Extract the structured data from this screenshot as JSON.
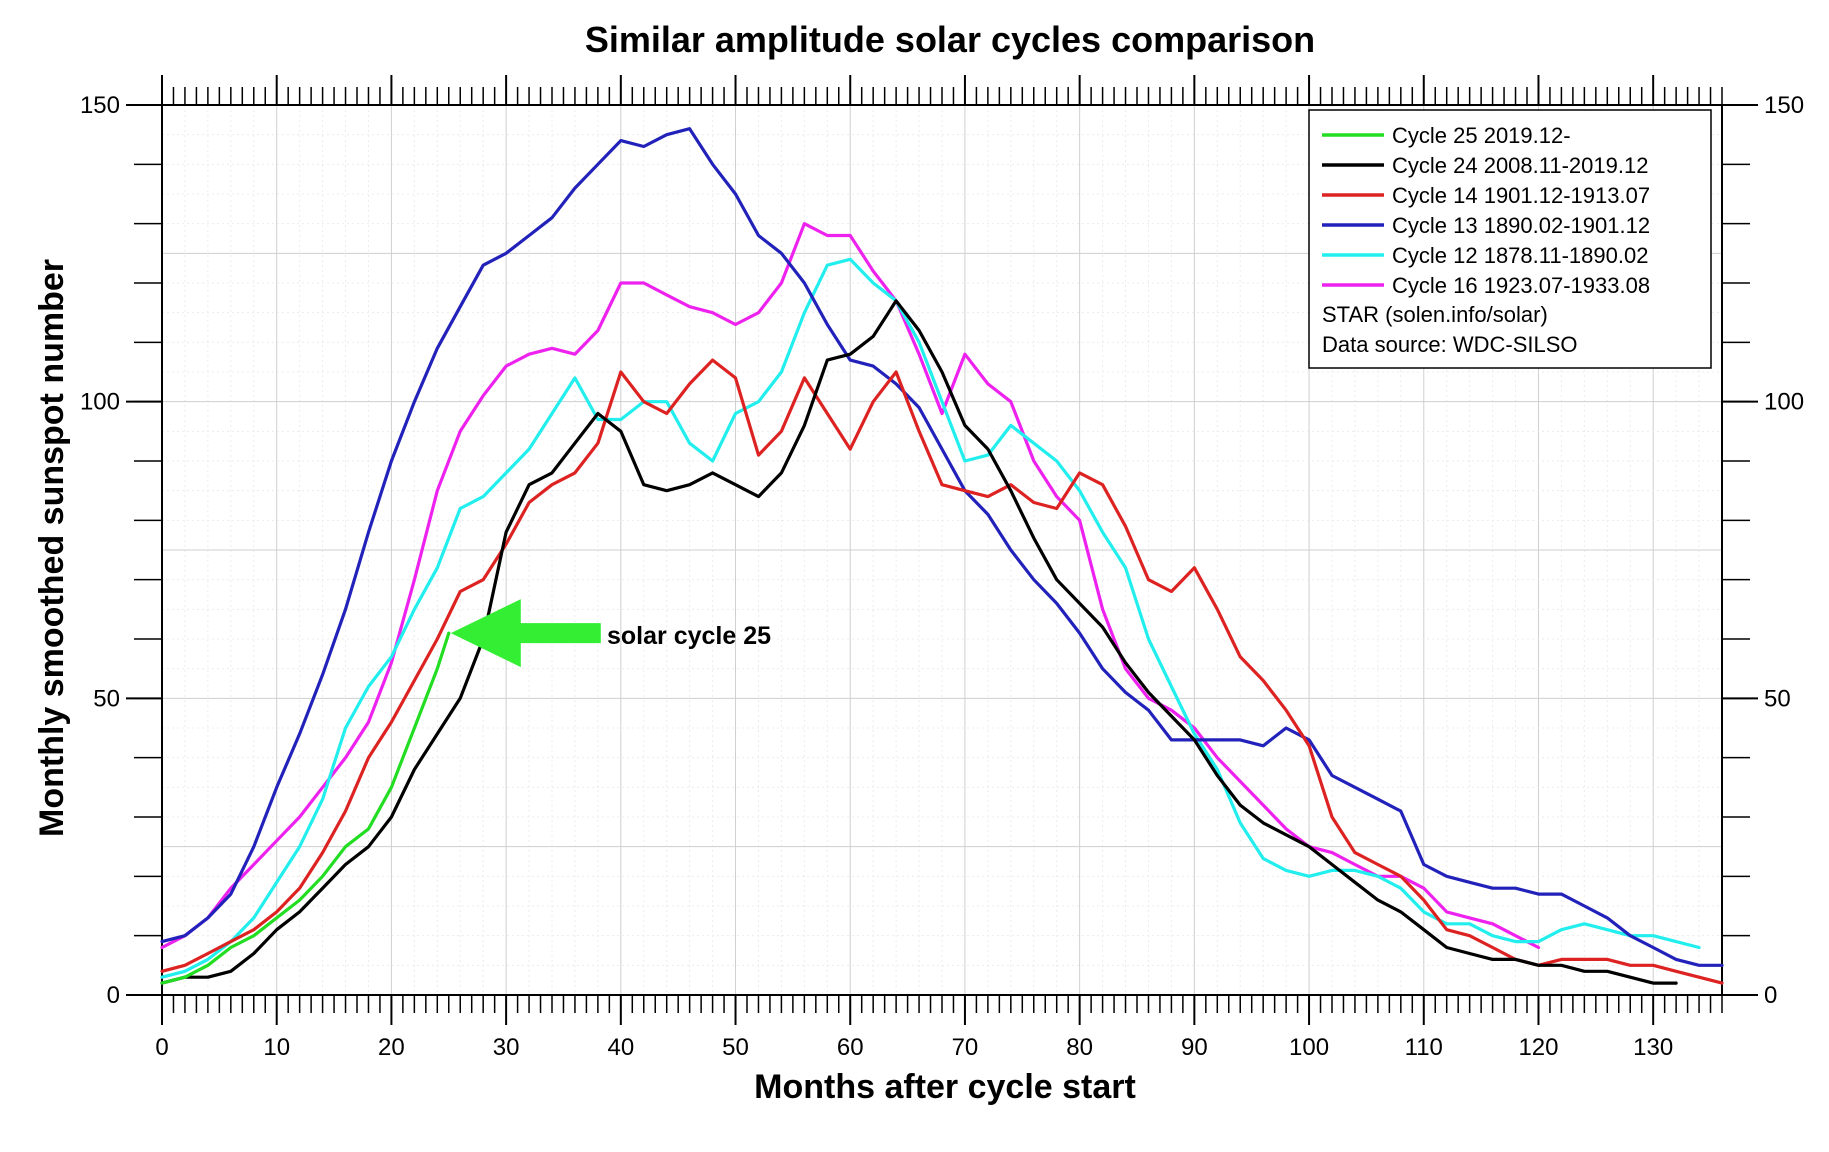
{
  "chart_data": {
    "type": "line",
    "title": "Similar amplitude solar cycles comparison",
    "xlabel": "Months after cycle start",
    "ylabel": "Monthly smoothed sunspot number",
    "xlim": [
      0,
      136
    ],
    "ylim": [
      0,
      150
    ],
    "x_ticks": [
      0,
      10,
      20,
      30,
      40,
      50,
      60,
      70,
      80,
      90,
      100,
      110,
      120,
      130
    ],
    "y_ticks": [
      0,
      50,
      100,
      150
    ],
    "grid": true,
    "right_axis": true,
    "legend_position": "top-right",
    "legend_notes": [
      "STAR (solen.info/solar)",
      "Data source: WDC-SILSO"
    ],
    "annotation": {
      "text": "solar cycle 25",
      "arrow_color": "#33ee33",
      "points_to": {
        "x": 25,
        "y": 61
      }
    },
    "series": [
      {
        "name": "Cycle 25 2019.12-",
        "color": "#22dd22",
        "x": [
          0,
          2,
          4,
          6,
          8,
          10,
          12,
          14,
          16,
          18,
          20,
          22,
          24,
          25
        ],
        "y": [
          2,
          3,
          5,
          8,
          10,
          13,
          16,
          20,
          25,
          28,
          35,
          45,
          55,
          61
        ]
      },
      {
        "name": "Cycle 24 2008.11-2019.12",
        "color": "#000000",
        "x": [
          0,
          2,
          4,
          6,
          8,
          10,
          12,
          14,
          16,
          18,
          20,
          22,
          24,
          26,
          28,
          30,
          32,
          34,
          36,
          38,
          40,
          42,
          44,
          46,
          48,
          50,
          52,
          54,
          56,
          58,
          60,
          62,
          64,
          66,
          68,
          70,
          72,
          74,
          76,
          78,
          80,
          82,
          84,
          86,
          88,
          90,
          92,
          94,
          96,
          98,
          100,
          102,
          104,
          106,
          108,
          110,
          112,
          114,
          116,
          118,
          120,
          122,
          124,
          126,
          128,
          130,
          132
        ],
        "y": [
          2,
          3,
          3,
          4,
          7,
          11,
          14,
          18,
          22,
          25,
          30,
          38,
          44,
          50,
          60,
          78,
          86,
          88,
          93,
          98,
          95,
          86,
          85,
          86,
          88,
          86,
          84,
          88,
          96,
          107,
          108,
          111,
          117,
          112,
          105,
          96,
          92,
          85,
          77,
          70,
          66,
          62,
          56,
          51,
          47,
          43,
          37,
          32,
          29,
          27,
          25,
          22,
          19,
          16,
          14,
          11,
          8,
          7,
          6,
          6,
          5,
          5,
          4,
          4,
          3,
          2,
          2
        ]
      },
      {
        "name": "Cycle 14 1901.12-1913.07",
        "color": "#dd2222",
        "x": [
          0,
          2,
          4,
          6,
          8,
          10,
          12,
          14,
          16,
          18,
          20,
          22,
          24,
          26,
          28,
          30,
          32,
          34,
          36,
          38,
          40,
          42,
          44,
          46,
          48,
          50,
          52,
          54,
          56,
          58,
          60,
          62,
          64,
          66,
          68,
          70,
          72,
          74,
          76,
          78,
          80,
          82,
          84,
          86,
          88,
          90,
          92,
          94,
          96,
          98,
          100,
          102,
          104,
          106,
          108,
          110,
          112,
          114,
          116,
          118,
          120,
          122,
          124,
          126,
          128,
          130,
          132,
          134,
          136
        ],
        "y": [
          4,
          5,
          7,
          9,
          11,
          14,
          18,
          24,
          31,
          40,
          46,
          53,
          60,
          68,
          70,
          76,
          83,
          86,
          88,
          93,
          105,
          100,
          98,
          103,
          107,
          104,
          91,
          95,
          104,
          98,
          92,
          100,
          105,
          95,
          86,
          85,
          84,
          86,
          83,
          82,
          88,
          86,
          79,
          70,
          68,
          72,
          65,
          57,
          53,
          48,
          42,
          30,
          24,
          22,
          20,
          16,
          11,
          10,
          8,
          6,
          5,
          6,
          6,
          6,
          5,
          5,
          4,
          3,
          2
        ]
      },
      {
        "name": "Cycle 13 1890.02-1901.12",
        "color": "#2222bb",
        "x": [
          0,
          2,
          4,
          6,
          8,
          10,
          12,
          14,
          16,
          18,
          20,
          22,
          24,
          26,
          28,
          30,
          32,
          34,
          36,
          38,
          40,
          42,
          44,
          46,
          48,
          50,
          52,
          54,
          56,
          58,
          60,
          62,
          64,
          66,
          68,
          70,
          72,
          74,
          76,
          78,
          80,
          82,
          84,
          86,
          88,
          90,
          92,
          94,
          96,
          98,
          100,
          102,
          104,
          106,
          108,
          110,
          112,
          114,
          116,
          118,
          120,
          122,
          124,
          126,
          128,
          130,
          132,
          134,
          136
        ],
        "y": [
          9,
          10,
          13,
          17,
          25,
          35,
          44,
          54,
          65,
          78,
          90,
          100,
          109,
          116,
          123,
          125,
          128,
          131,
          136,
          140,
          144,
          143,
          145,
          146,
          140,
          135,
          128,
          125,
          120,
          113,
          107,
          106,
          103,
          99,
          92,
          85,
          81,
          75,
          70,
          66,
          61,
          55,
          51,
          48,
          43,
          43,
          43,
          43,
          42,
          45,
          43,
          37,
          35,
          33,
          31,
          22,
          20,
          19,
          18,
          18,
          17,
          17,
          15,
          13,
          10,
          8,
          6,
          5,
          5
        ]
      },
      {
        "name": "Cycle 12 1878.11-1890.02",
        "color": "#22eeee",
        "x": [
          0,
          2,
          4,
          6,
          8,
          10,
          12,
          14,
          16,
          18,
          20,
          22,
          24,
          26,
          28,
          30,
          32,
          34,
          36,
          38,
          40,
          42,
          44,
          46,
          48,
          50,
          52,
          54,
          56,
          58,
          60,
          62,
          64,
          66,
          68,
          70,
          72,
          74,
          76,
          78,
          80,
          82,
          84,
          86,
          88,
          90,
          92,
          94,
          96,
          98,
          100,
          102,
          104,
          106,
          108,
          110,
          112,
          114,
          116,
          118,
          120,
          122,
          124,
          126,
          128,
          130,
          132,
          134
        ],
        "y": [
          3,
          4,
          6,
          9,
          13,
          19,
          25,
          33,
          45,
          52,
          57,
          65,
          72,
          82,
          84,
          88,
          92,
          98,
          104,
          97,
          97,
          100,
          100,
          93,
          90,
          98,
          100,
          105,
          115,
          123,
          124,
          120,
          117,
          110,
          100,
          90,
          91,
          96,
          93,
          90,
          85,
          78,
          72,
          60,
          52,
          44,
          38,
          29,
          23,
          21,
          20,
          21,
          21,
          20,
          18,
          14,
          12,
          12,
          10,
          9,
          9,
          11,
          12,
          11,
          10,
          10,
          9,
          8
        ]
      },
      {
        "name": "Cycle 16 1923.07-1933.08",
        "color": "#ee22ee",
        "x": [
          0,
          2,
          4,
          6,
          8,
          10,
          12,
          14,
          16,
          18,
          20,
          22,
          24,
          26,
          28,
          30,
          32,
          34,
          36,
          38,
          40,
          42,
          44,
          46,
          48,
          50,
          52,
          54,
          56,
          58,
          60,
          62,
          64,
          66,
          68,
          70,
          72,
          74,
          76,
          78,
          80,
          82,
          84,
          86,
          88,
          90,
          92,
          94,
          96,
          98,
          100,
          102,
          104,
          106,
          108,
          110,
          112,
          114,
          116,
          118,
          120
        ],
        "y": [
          8,
          10,
          13,
          18,
          22,
          26,
          30,
          35,
          40,
          46,
          56,
          70,
          85,
          95,
          101,
          106,
          108,
          109,
          108,
          112,
          120,
          120,
          118,
          116,
          115,
          113,
          115,
          120,
          130,
          128,
          128,
          122,
          117,
          108,
          98,
          108,
          103,
          100,
          90,
          84,
          80,
          65,
          55,
          50,
          48,
          45,
          40,
          36,
          32,
          28,
          25,
          24,
          22,
          20,
          20,
          18,
          14,
          13,
          12,
          10,
          8
        ]
      }
    ]
  }
}
